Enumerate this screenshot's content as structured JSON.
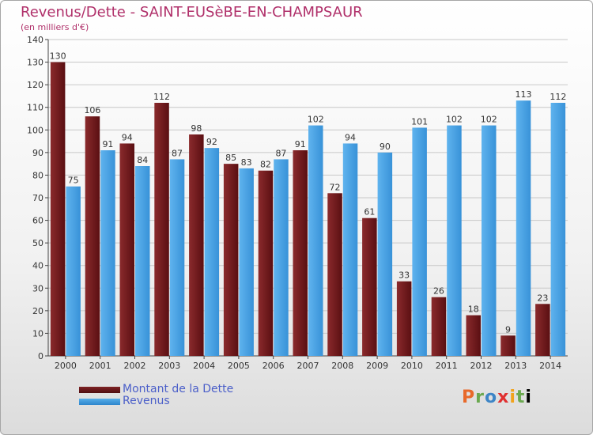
{
  "chart_data": {
    "type": "bar",
    "title": "Revenus/Dette - SAINT-EUSèBE-EN-CHAMPSAUR",
    "subtitle": "(en milliers d'€)",
    "categories": [
      "2000",
      "2001",
      "2002",
      "2003",
      "2004",
      "2005",
      "2006",
      "2007",
      "2008",
      "2009",
      "2010",
      "2011",
      "2012",
      "2013",
      "2014"
    ],
    "series": [
      {
        "name": "Montant de la Dette",
        "values": [
          130,
          106,
          94,
          112,
          98,
          85,
          82,
          91,
          72,
          61,
          33,
          26,
          18,
          9,
          23
        ],
        "color": "#6b1518"
      },
      {
        "name": "Revenus",
        "values": [
          75,
          91,
          84,
          87,
          92,
          83,
          87,
          102,
          94,
          90,
          101,
          102,
          102,
          113,
          112
        ],
        "color": "#4aa3e4"
      }
    ],
    "ylim": [
      0,
      140
    ],
    "yticks": [
      0,
      10,
      20,
      30,
      40,
      50,
      60,
      70,
      80,
      90,
      100,
      110,
      120,
      130,
      140
    ],
    "grid": true,
    "legend": "bottom-left"
  },
  "branding": {
    "logo_text": "Proxiti"
  }
}
